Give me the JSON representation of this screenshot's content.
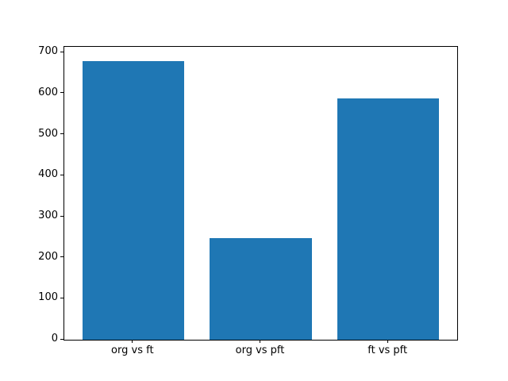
{
  "figure": {
    "background": "#ffffff",
    "spine_color": "#000000",
    "tick_color": "#000000",
    "label_color": "#000000"
  },
  "chart_data": {
    "type": "bar",
    "title": "",
    "xlabel": "",
    "ylabel": "",
    "categories": [
      "org vs ft",
      "org vs pft",
      "ft vs pft"
    ],
    "values": [
      680,
      248,
      588
    ],
    "bar_color": "#1f77b4",
    "bar_width": 0.8,
    "xlim": [
      -0.54,
      2.54
    ],
    "ylim": [
      0,
      714
    ],
    "yticks": [
      0,
      100,
      200,
      300,
      400,
      500,
      600,
      700
    ],
    "grid": false,
    "legend": null
  }
}
